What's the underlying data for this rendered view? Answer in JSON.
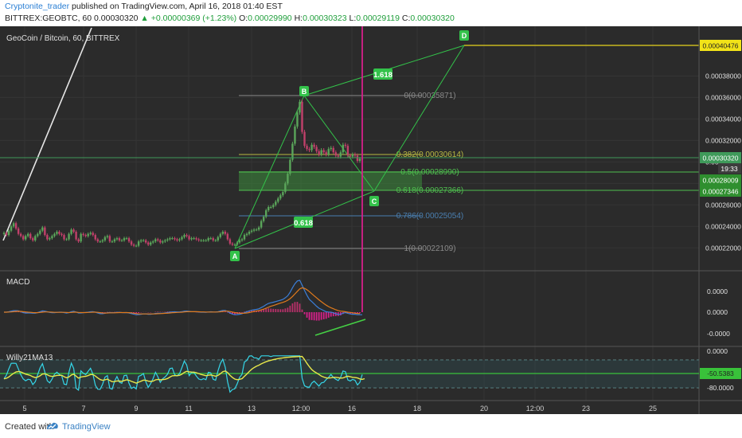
{
  "header": {
    "author": "Cryptonite_trader",
    "published": " published on TradingView.com, April 16, 2018 01:40 EST",
    "symbol_prefix": "BITTREX:GEOBTC, 60  0.00030320 ",
    "change": "▲ +0.00000369 (+1.23%)",
    "ohlc_o_label": " O:",
    "ohlc_o": "0.00029990",
    "ohlc_h_label": " H:",
    "ohlc_h": "0.00030323",
    "ohlc_l_label": " L:",
    "ohlc_l": "0.00029119",
    "ohlc_c_label": " C:",
    "ohlc_c": "0.00030320"
  },
  "footer": {
    "created_with": "Created with",
    "brand": "TradingView"
  },
  "colors": {
    "background": "#2b2b2b",
    "up": "#5aa55a",
    "down": "#c0406a",
    "pattern": "#33c24a",
    "fib_gray": "#8a8a8a",
    "fib_yellow": "#b8b842",
    "fib_green": "#4fbf4f",
    "fib_blue": "#4a7fb0",
    "macd": "#3b7fd9",
    "signal": "#e07a1c",
    "willy": "#35d6e8",
    "willy_ma": "#e8e84a"
  },
  "chart_data": [
    {
      "type": "candlestick",
      "title": "GeoCoin / Bitcoin, 60, BITTREX",
      "interval": "60",
      "x_ticks": [
        "5",
        "7",
        "9",
        "11",
        "13",
        "12:00",
        "16",
        "18",
        "20",
        "12:00",
        "23",
        "25"
      ],
      "y_ticks": [
        "0.00038000",
        "0.00036000",
        "0.00034000",
        "0.00032000",
        "0.00030000",
        "0.00028000",
        "0.00026000",
        "0.00024000",
        "0.00022000"
      ],
      "ylim": [
        0.00021,
        0.00041
      ],
      "last_price": "0.00030320",
      "countdown": "19:33",
      "series": [
        {
          "name": "GEOBTC",
          "close": [
            0.000234,
            0.000232,
            0.000236,
            0.00024,
            0.000243,
            0.000238,
            0.000233,
            0.000231,
            0.000228,
            0.000231,
            0.000233,
            0.000229,
            0.000227,
            0.000231,
            0.000233,
            0.000236,
            0.000239,
            0.000232,
            0.000228,
            0.000229,
            0.000231,
            0.000233,
            0.000235,
            0.000233,
            0.000232,
            0.000228,
            0.000228,
            0.000233,
            0.000237,
            0.000235,
            0.000228,
            0.000226,
            0.000233,
            0.000232,
            0.000231,
            0.000233,
            0.000234,
            0.000232,
            0.000228,
            0.000226,
            0.000226,
            0.000227,
            0.00023,
            0.000231,
            0.000226,
            0.000226,
            0.000228,
            0.000229,
            0.000227,
            0.000227,
            0.000229,
            0.000229,
            0.000226,
            0.000223,
            0.000222,
            0.000222,
            0.000226,
            0.000227,
            0.000227,
            0.000225,
            0.000223,
            0.000225,
            0.000226,
            0.000228,
            0.000227,
            0.000225,
            0.000226,
            0.000227,
            0.000228,
            0.000229,
            0.000229,
            0.000228,
            0.000227,
            0.000228,
            0.00023,
            0.000232,
            0.000231,
            0.000228,
            0.000229,
            0.000229,
            0.000228,
            0.000227,
            0.000227,
            0.000227,
            0.000227,
            0.000229,
            0.000229,
            0.000227,
            0.000227,
            0.00023,
            0.000233,
            0.000235,
            0.000233,
            0.000228,
            0.000224,
            0.000223,
            0.000223,
            0.000225,
            0.000227,
            0.000228,
            0.000232,
            0.000233,
            0.000235,
            0.000236,
            0.000237,
            0.000237,
            0.000239,
            0.000245,
            0.000249,
            0.000255,
            0.000258,
            0.000258,
            0.00026,
            0.000263,
            0.000266,
            0.000269,
            0.000272,
            0.00028,
            0.000289,
            0.000302,
            0.000317,
            0.000333,
            0.000346,
            0.000356,
            0.000328,
            0.000315,
            0.000312,
            0.000311,
            0.000316,
            0.000314,
            0.00031,
            0.000307,
            0.000311,
            0.000309,
            0.000307,
            0.000312,
            0.000313,
            0.000309,
            0.000306,
            0.000305,
            0.000309,
            0.000316,
            0.000315,
            0.000306,
            0.000305,
            0.000307,
            0.000306,
            0.000301,
            0.000303,
            0.000303
          ]
        },
        {
          "name": "Fib retracement",
          "levels": [
            "0(0.00035871)",
            "0.382(0.00030614)",
            "0.5(0.00028990)",
            "0.618(0.00027366)",
            "0.786(0.00025054)",
            "1(0.00022109)"
          ]
        },
        {
          "name": "Harmonic pattern",
          "points": [
            "A",
            "B",
            "C",
            "D"
          ],
          "ratios": [
            "1.618",
            "0.618"
          ]
        },
        {
          "name": "Price labels",
          "values": [
            "0.00040476",
            "0.00030320",
            "0.00028009",
            "0.00027346"
          ]
        }
      ]
    },
    {
      "type": "line",
      "title": "MACD",
      "y_ticks": [
        "0.0000",
        "0.0000",
        "-0.0000"
      ],
      "series": [
        {
          "name": "MACD",
          "values": [
            -0.0,
            -0.0,
            0.3,
            0.8,
            1.2,
            1.2,
            1.0,
            0.4,
            -0.3,
            -0.7,
            -0.6,
            -0.6,
            -0.8,
            -0.8,
            -0.3,
            0.4,
            1.0,
            0.8,
            0.3,
            -0.2,
            -0.4,
            -0.4,
            -0.2,
            0.0,
            0.0,
            -0.3,
            -0.7,
            -0.4,
            0.3,
            0.6,
            0.1,
            -0.6,
            -0.6,
            -0.4,
            -0.2,
            0.0,
            0.3,
            0.4,
            0.0,
            -0.7,
            -1.2,
            -1.2,
            -0.9,
            -0.4,
            -0.3,
            -0.4,
            -0.3,
            -0.1,
            -0.1,
            -0.3,
            -0.4,
            -0.3,
            -0.6,
            -1.1,
            -1.6,
            -2.0,
            -1.9,
            -1.6,
            -1.3,
            -1.3,
            -1.6,
            -1.6,
            -1.4,
            -1.0,
            -0.8,
            -0.8,
            -0.8,
            -0.6,
            -0.3,
            -0.0,
            0.2,
            0.3,
            0.2,
            0.2,
            0.4,
            0.8,
            0.9,
            0.6,
            0.4,
            0.4,
            0.3,
            0.1,
            -0.0,
            -0.0,
            -0.1,
            0.1,
            0.3,
            0.2,
            0.1,
            0.3,
            0.9,
            1.4,
            1.4,
            0.5,
            -0.7,
            -1.5,
            -2.0,
            -1.9,
            -1.6,
            -1.2,
            -0.4,
            0.3,
            1.0,
            1.5,
            1.9,
            2.2,
            2.6,
            3.6,
            4.6,
            5.9,
            6.9,
            7.4,
            7.8,
            8.3,
            8.9,
            9.4,
            10.0,
            11.3,
            12.9,
            15.7,
            19.2,
            22.3,
            24.5,
            25.0,
            21.2,
            17.1,
            13.3,
            10.0,
            8.3,
            6.5,
            4.7,
            3.1,
            2.2,
            1.2,
            0.3,
            0.1,
            -0.0,
            -0.5,
            -1.2,
            -1.8,
            -1.7,
            -0.8,
            -0.3,
            -0.9,
            -1.4,
            -1.6,
            -1.6,
            -2.0,
            -2.0,
            -2.0
          ]
        },
        {
          "name": "Signal",
          "values": [
            -0.0,
            -0.0,
            0.1,
            0.2,
            0.4,
            0.6,
            0.7,
            0.6,
            0.4,
            0.2,
            0.0,
            -0.1,
            -0.3,
            -0.4,
            -0.4,
            -0.2,
            0.0,
            0.2,
            0.2,
            0.1,
            0.0,
            -0.1,
            -0.1,
            -0.1,
            -0.1,
            -0.1,
            -0.2,
            -0.3,
            -0.2,
            -0.0,
            -0.0,
            -0.2,
            -0.3,
            -0.3,
            -0.3,
            -0.2,
            -0.1,
            0.0,
            0.0,
            -0.1,
            -0.4,
            -0.6,
            -0.7,
            -0.6,
            -0.5,
            -0.5,
            -0.5,
            -0.4,
            -0.3,
            -0.3,
            -0.3,
            -0.3,
            -0.4,
            -0.5,
            -0.8,
            -1.1,
            -1.3,
            -1.4,
            -1.4,
            -1.4,
            -1.4,
            -1.4,
            -1.4,
            -1.3,
            -1.2,
            -1.1,
            -1.0,
            -0.9,
            -0.8,
            -0.6,
            -0.4,
            -0.3,
            -0.2,
            -0.1,
            0.0,
            0.2,
            0.4,
            0.4,
            0.4,
            0.4,
            0.4,
            0.3,
            0.2,
            0.2,
            0.1,
            0.1,
            0.1,
            0.1,
            0.1,
            0.2,
            0.3,
            0.6,
            0.8,
            0.8,
            0.5,
            0.1,
            -0.3,
            -0.6,
            -0.8,
            -0.9,
            -0.8,
            -0.6,
            -0.3,
            0.1,
            0.5,
            0.9,
            1.3,
            1.8,
            2.4,
            3.1,
            3.9,
            4.6,
            5.2,
            5.8,
            6.5,
            7.1,
            7.7,
            8.4,
            9.4,
            10.6,
            12.3,
            14.3,
            16.4,
            18.3,
            19.1,
            18.7,
            17.6,
            16.1,
            14.5,
            12.9,
            11.3,
            9.7,
            8.2,
            6.8,
            5.5,
            4.4,
            3.5,
            2.7,
            1.9,
            1.2,
            0.8,
            0.6,
            0.3,
            0.0,
            -0.2,
            -0.5,
            -0.8,
            -1.0,
            -1.1
          ]
        }
      ]
    },
    {
      "type": "line",
      "title": "Willy21MA13",
      "y_ticks": [
        "0.0000",
        "-80.0000"
      ],
      "ylim": [
        -100,
        0
      ],
      "current_value": "-50.5383",
      "series": [
        {
          "name": "Willy",
          "values": [
            -59.8,
            -52.0,
            -38.4,
            -26.2,
            -26.1,
            -26.3,
            -38.4,
            -51.0,
            -60.2,
            -63.9,
            -60.8,
            -61.7,
            -72.3,
            -66.0,
            -50.8,
            -36.2,
            -27.0,
            -45.0,
            -64.2,
            -68.4,
            -60.2,
            -50.1,
            -45.4,
            -50.2,
            -53.1,
            -71.4,
            -72.4,
            -46.2,
            -26.0,
            -37.5,
            -80.2,
            -84.3,
            -42.6,
            -47.7,
            -50.6,
            -43.6,
            -36.9,
            -49.8,
            -74.0,
            -82.3,
            -82.6,
            -71.8,
            -56.5,
            -52.7,
            -80.4,
            -82.2,
            -64.9,
            -54.8,
            -67.0,
            -69.5,
            -52.6,
            -52.0,
            -69.4,
            -80.7,
            -77.6,
            -81.8,
            -54.4,
            -52.2,
            -48.5,
            -66.4,
            -78.5,
            -70.1,
            -59.7,
            -45.6,
            -55.3,
            -67.5,
            -59.9,
            -55.8,
            -49.9,
            -37.5,
            -36.6,
            -51.0,
            -53.4,
            -48.6,
            -35.6,
            -21.3,
            -29.8,
            -53.0,
            -46.2,
            -46.4,
            -53.8,
            -60.1,
            -61.9,
            -59.4,
            -61.8,
            -45.7,
            -47.1,
            -60.9,
            -62.9,
            -42.6,
            -26.6,
            -17.2,
            -34.6,
            -66.3,
            -88.5,
            -82.9,
            -81.5,
            -70.3,
            -56.5,
            -50.0,
            -23.4,
            -20.0,
            -10.6,
            -10.0,
            -14.3,
            -14.6,
            -17.5,
            -10.0,
            -10.0,
            -10.0,
            -10.0,
            -11.8,
            -10.0,
            -10.0,
            -10.0,
            -10.0,
            -10.0,
            -10.0,
            -10.0,
            -10.0,
            -10.0,
            -10.0,
            -10.0,
            -10.0,
            -58.6,
            -74.8,
            -77.4,
            -78.1,
            -69.0,
            -64.9,
            -70.2,
            -75.6,
            -68.6,
            -67.4,
            -61.3,
            -56.8,
            -50.3,
            -56.9,
            -60.7,
            -63.4,
            -56.5,
            -42.8,
            -44.3,
            -62.3,
            -64.4,
            -61.0,
            -62.9,
            -72.9,
            -67.4,
            -50.5
          ]
        },
        {
          "name": "MA13",
          "values": [
            -59.8,
            -58.7,
            -55.8,
            -51.5,
            -47.9,
            -44.8,
            -44.0,
            -45.0,
            -47.3,
            -49.6,
            -51.1,
            -52.6,
            -55.4,
            -57.0,
            -56.0,
            -53.2,
            -49.5,
            -48.9,
            -51.1,
            -53.6,
            -54.6,
            -53.8,
            -52.5,
            -52.2,
            -52.2,
            -55.1,
            -57.6,
            -55.9,
            -51.6,
            -49.6,
            -53.9,
            -58.3,
            -56.0,
            -54.9,
            -54.3,
            -52.8,
            -50.6,
            -50.5,
            -53.8,
            -57.9,
            -61.4,
            -62.9,
            -61.9,
            -60.6,
            -63.4,
            -66.0,
            -65.8,
            -64.3,
            -64.7,
            -65.3,
            -63.5,
            -61.9,
            -62.9,
            -65.4,
            -67.1,
            -69.2,
            -67.1,
            -65.0,
            -62.6,
            -63.1,
            -64.9,
            -65.6,
            -64.8,
            -62.1,
            -61.1,
            -61.9,
            -61.6,
            -60.8,
            -59.1,
            -56.0,
            -53.2,
            -52.9,
            -52.9,
            -52.3,
            -49.9,
            -45.8,
            -43.5,
            -44.9,
            -45.1,
            -45.3,
            -46.5,
            -48.4,
            -50.3,
            -51.6,
            -53.1,
            -52.0,
            -51.3,
            -52.7,
            -54.1,
            -52.5,
            -48.8,
            -44.3,
            -42.9,
            -46.2,
            -52.3,
            -56.7,
            -60.3,
            -61.7,
            -60.9,
            -59.4,
            -54.3,
            -49.4,
            -43.9,
            -39.1,
            -35.6,
            -32.6,
            -30.4,
            -27.5,
            -25.0,
            -22.8,
            -21.0,
            -19.7,
            -18.3,
            -17.1,
            -16.1,
            -15.2,
            -14.5,
            -13.8,
            -13.3,
            -12.8,
            -12.4,
            -12.1,
            -11.8,
            -11.5,
            -11.3,
            -18.1,
            -26.2,
            -33.6,
            -39.9,
            -44.0,
            -47.0,
            -50.3,
            -53.9,
            -56.0,
            -57.6,
            -58.1,
            -57.6,
            -56.6,
            -56.6,
            -57.2,
            -58.2,
            -57.9,
            -55.7,
            -54.1,
            -55.3,
            -56.5,
            -57.1,
            -57.9,
            -60.0,
            -61.0,
            -59.5
          ]
        }
      ]
    }
  ]
}
